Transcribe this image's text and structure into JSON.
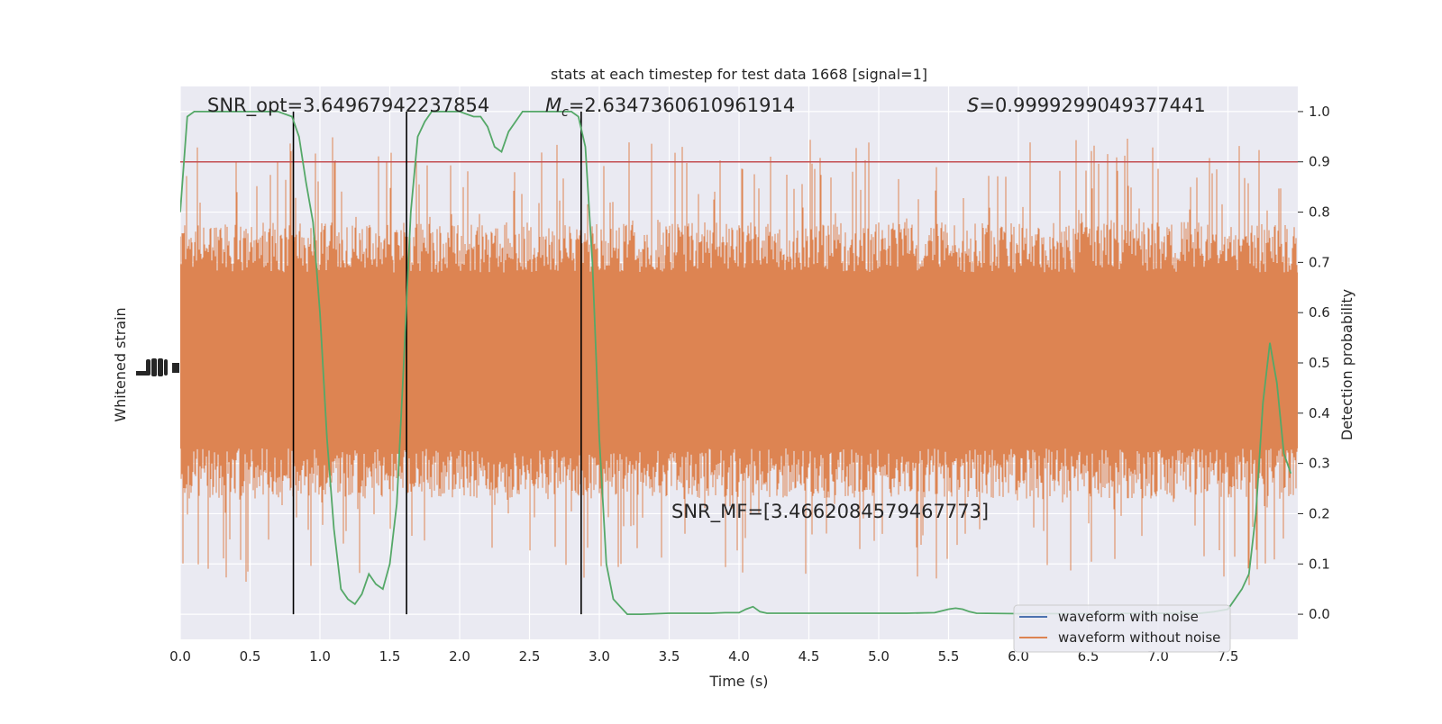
{
  "chart_data": {
    "type": "line",
    "title": "stats at each timestep for test data 1668 [signal=1]",
    "xlabel": "Time (s)",
    "ylabel_left": "Whitened strain",
    "ylabel_right": "Detection probability",
    "xlim": [
      0.0,
      8.0
    ],
    "ylim_right": [
      -0.05,
      1.05
    ],
    "x_ticks": [
      "0.0",
      "0.5",
      "1.0",
      "1.5",
      "2.0",
      "2.5",
      "3.0",
      "3.5",
      "4.0",
      "4.5",
      "5.0",
      "5.5",
      "6.0",
      "6.5",
      "7.0",
      "7.5"
    ],
    "y_ticks_right": [
      "0.0",
      "0.1",
      "0.2",
      "0.3",
      "0.4",
      "0.5",
      "0.6",
      "0.7",
      "0.8",
      "0.9",
      "1.0"
    ],
    "grid": true,
    "annotations": {
      "snr_opt": "SNR_opt=3.64967942237854",
      "mc_symbol": "M",
      "mc_sub": "c",
      "mc_value": "=2.6347360610961914",
      "s_symbol": "S",
      "s_value": "=0.9999299049377441",
      "snr_mf": "SNR_MF=[3.4662084579467773]"
    },
    "threshold": 0.9,
    "vertical_markers": [
      0.81,
      1.62,
      2.87
    ],
    "series": [
      {
        "name": "waveform with noise",
        "color": "#4c72b0"
      },
      {
        "name": "waveform without noise",
        "color": "#dd8452"
      }
    ],
    "detection_probability": {
      "color": "#55a868",
      "x": [
        0.0,
        0.05,
        0.1,
        0.2,
        0.3,
        0.4,
        0.5,
        0.6,
        0.7,
        0.8,
        0.85,
        0.9,
        0.95,
        1.0,
        1.05,
        1.1,
        1.15,
        1.2,
        1.25,
        1.3,
        1.35,
        1.4,
        1.45,
        1.5,
        1.55,
        1.6,
        1.65,
        1.7,
        1.75,
        1.8,
        1.9,
        2.0,
        2.1,
        2.15,
        2.2,
        2.25,
        2.3,
        2.35,
        2.4,
        2.45,
        2.5,
        2.6,
        2.7,
        2.8,
        2.85,
        2.9,
        2.95,
        3.0,
        3.05,
        3.1,
        3.2,
        3.3,
        3.5,
        3.6,
        3.8,
        3.9,
        4.0,
        4.05,
        4.1,
        4.15,
        4.2,
        4.3,
        4.4,
        4.5,
        4.6,
        4.8,
        5.0,
        5.2,
        5.4,
        5.5,
        5.55,
        5.6,
        5.65,
        5.7,
        6.0,
        6.5,
        7.0,
        7.3,
        7.4,
        7.5,
        7.55,
        7.6,
        7.65,
        7.7,
        7.75,
        7.8,
        7.85,
        7.9,
        7.95
      ],
      "y": [
        0.8,
        0.99,
        1.0,
        1.0,
        1.0,
        1.0,
        1.0,
        1.0,
        1.0,
        0.99,
        0.95,
        0.86,
        0.78,
        0.6,
        0.35,
        0.17,
        0.05,
        0.03,
        0.02,
        0.04,
        0.08,
        0.06,
        0.05,
        0.1,
        0.22,
        0.5,
        0.8,
        0.95,
        0.98,
        1.0,
        1.0,
        1.0,
        0.99,
        0.99,
        0.97,
        0.93,
        0.92,
        0.96,
        0.98,
        1.0,
        1.0,
        1.0,
        1.0,
        1.0,
        0.99,
        0.93,
        0.7,
        0.35,
        0.1,
        0.03,
        0.0,
        0.0,
        0.002,
        0.002,
        0.002,
        0.003,
        0.003,
        0.01,
        0.015,
        0.005,
        0.002,
        0.002,
        0.002,
        0.002,
        0.002,
        0.002,
        0.002,
        0.002,
        0.003,
        0.01,
        0.012,
        0.01,
        0.005,
        0.002,
        0.001,
        0.001,
        0.002,
        0.002,
        0.005,
        0.01,
        0.03,
        0.05,
        0.08,
        0.2,
        0.42,
        0.54,
        0.46,
        0.32,
        0.28
      ]
    },
    "strain_envelope": {
      "upper_floor": 0.68,
      "lower_ceiling": 0.33,
      "spike_top": 0.99,
      "spike_bottom": 0.02
    },
    "legend_position": "lower-right"
  }
}
